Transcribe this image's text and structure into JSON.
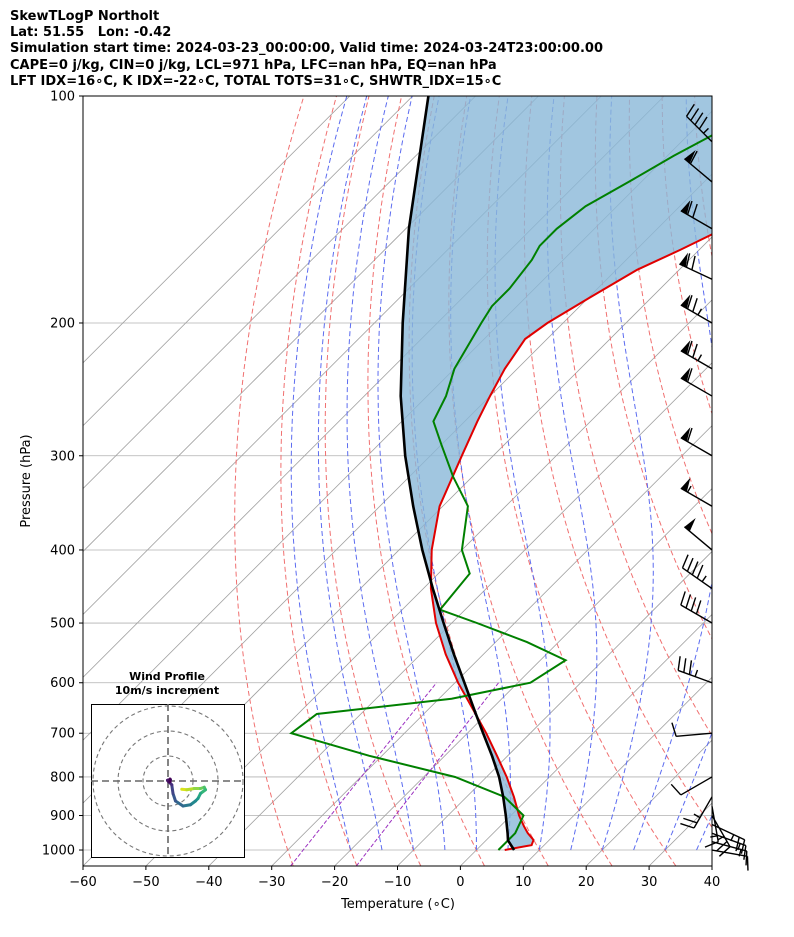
{
  "header": {
    "line1": "SkewTLogP Northolt",
    "line2": "Lat: 51.55   Lon: -0.42",
    "line3": "Simulation start time: 2024-03-23_00:00:00, Valid time: 2024-03-24T23:00:00.00",
    "line4": "CAPE=0 j/kg, CIN=0 j/kg, LCL=971 hPa, LFC=nan hPa, EQ=nan hPa",
    "line5": "LFT IDX=16∘C, K IDX=-22∘C, TOTAL TOTS=31∘C, SHWTR_IDX=15∘C"
  },
  "colors": {
    "temperature": "#e00000",
    "dewpoint": "#008000",
    "parcel": "#000000",
    "cin_fill": "#8ab8d8",
    "isotherm": "#a0a0a0",
    "dry_adiabat": "#f07070",
    "moist_adiabat": "#5c6cf0",
    "mixing_ratio": "#9b30c0"
  },
  "chart_data": {
    "type": "skewt",
    "xlabel": "Temperature (∘C)",
    "ylabel": "Pressure (hPa)",
    "xlim": [
      -60,
      40
    ],
    "ylim": [
      1050,
      100
    ],
    "x_ticks": [
      -60,
      -50,
      -40,
      -30,
      -20,
      -10,
      0,
      10,
      20,
      30,
      40
    ],
    "y_ticks": [
      1000,
      900,
      800,
      700,
      600,
      500,
      400,
      300,
      200,
      100
    ],
    "log_pressure": true,
    "grid": true,
    "temperature": {
      "p": [
        1000,
        985,
        970,
        950,
        930,
        900,
        850,
        800,
        750,
        700,
        650,
        600,
        550,
        500,
        450,
        400,
        350,
        300,
        270,
        250,
        230,
        210,
        200,
        185,
        170,
        160,
        150,
        140,
        130,
        120,
        110,
        100
      ],
      "t": [
        4.5,
        8.0,
        7.5,
        5.5,
        3.8,
        1.3,
        -2.5,
        -6.8,
        -11.7,
        -17.0,
        -23.0,
        -29.5,
        -36.0,
        -42.5,
        -48.8,
        -54.8,
        -60.5,
        -65.0,
        -68.0,
        -70.0,
        -72.0,
        -73.5,
        -72.5,
        -69.8,
        -66.7,
        -63.0,
        -59.5,
        -57.0,
        -56.0,
        -57.0,
        -58.5,
        -59.5
      ]
    },
    "dewpoint": {
      "p": [
        1000,
        950,
        900,
        850,
        800,
        750,
        700,
        660,
        630,
        600,
        560,
        530,
        500,
        480,
        430,
        400,
        350,
        320,
        290,
        270,
        250,
        230,
        200,
        190,
        180,
        165,
        158,
        150,
        140,
        130,
        120,
        110,
        100
      ],
      "td": [
        3.5,
        3.5,
        2.0,
        -4.0,
        -15.0,
        -32.0,
        -48.0,
        -47.0,
        -28.0,
        -18.0,
        -16.0,
        -25.0,
        -36.0,
        -44.0,
        -45.0,
        -50.0,
        -56.0,
        -63.0,
        -70.0,
        -75.0,
        -77.0,
        -80.0,
        -83.0,
        -84.0,
        -84.0,
        -85.0,
        -86.0,
        -86.0,
        -85.0,
        -82.0,
        -79.0,
        -75.0,
        -70.0
      ]
    },
    "parcel": {
      "p": [
        1000,
        971,
        950,
        900,
        850,
        800,
        750,
        700,
        650,
        600,
        550,
        500,
        450,
        400,
        350,
        300,
        250,
        200,
        150,
        100
      ],
      "t": [
        6.0,
        3.5,
        2.3,
        -0.8,
        -4.2,
        -8.0,
        -12.5,
        -17.5,
        -22.8,
        -28.5,
        -34.7,
        -41.3,
        -48.5,
        -56.3,
        -64.7,
        -74.0,
        -84.2,
        -95.5,
        -109.5,
        -127.5
      ]
    },
    "wind_barbs": {
      "p": [
        1000,
        975,
        950,
        925,
        900,
        875,
        850,
        800,
        700,
        600,
        500,
        450,
        400,
        350,
        300,
        250,
        230,
        200,
        175,
        150,
        130,
        115
      ],
      "speed_kt": [
        10,
        15,
        15,
        25,
        25,
        15,
        25,
        10,
        10,
        35,
        40,
        45,
        50,
        55,
        60,
        60,
        75,
        75,
        70,
        70,
        60,
        45
      ],
      "direction_deg": [
        100,
        105,
        110,
        115,
        150,
        170,
        210,
        240,
        265,
        290,
        300,
        305,
        310,
        300,
        300,
        300,
        300,
        300,
        295,
        300,
        310,
        315
      ]
    },
    "hodograph": {
      "title": "Wind Profile",
      "subtitle": "10m/s increment",
      "rings": [
        10,
        20,
        30
      ],
      "u": [
        5.5,
        7.5,
        10.5,
        13.0,
        14.5,
        15.0,
        13.0,
        12.0,
        11.0,
        9.0,
        6.0,
        3.0,
        2.0,
        1.5,
        0.5,
        0.0,
        -0.2,
        1.0,
        0.8,
        0.8
      ],
      "v": [
        -3.3,
        -3.5,
        -3.0,
        -3.0,
        -2.5,
        -3.5,
        -5.0,
        -7.0,
        -8.0,
        -9.5,
        -10.0,
        -8.0,
        -5.0,
        -1.5,
        -0.5,
        0.0,
        0.3,
        0.5,
        -0.3,
        0.8
      ],
      "colors": [
        "#dbe31a",
        "#b8dd2a",
        "#8fd744",
        "#6ccd5a",
        "#4cc26c",
        "#35b779",
        "#26a784",
        "#1f988b",
        "#22888e",
        "#2a788e",
        "#31688e",
        "#39568c",
        "#414487",
        "#472f7d",
        "#481a6c",
        "#440154",
        "#481a6c",
        "#472f7d",
        "#440154",
        "#481a6c"
      ]
    }
  }
}
